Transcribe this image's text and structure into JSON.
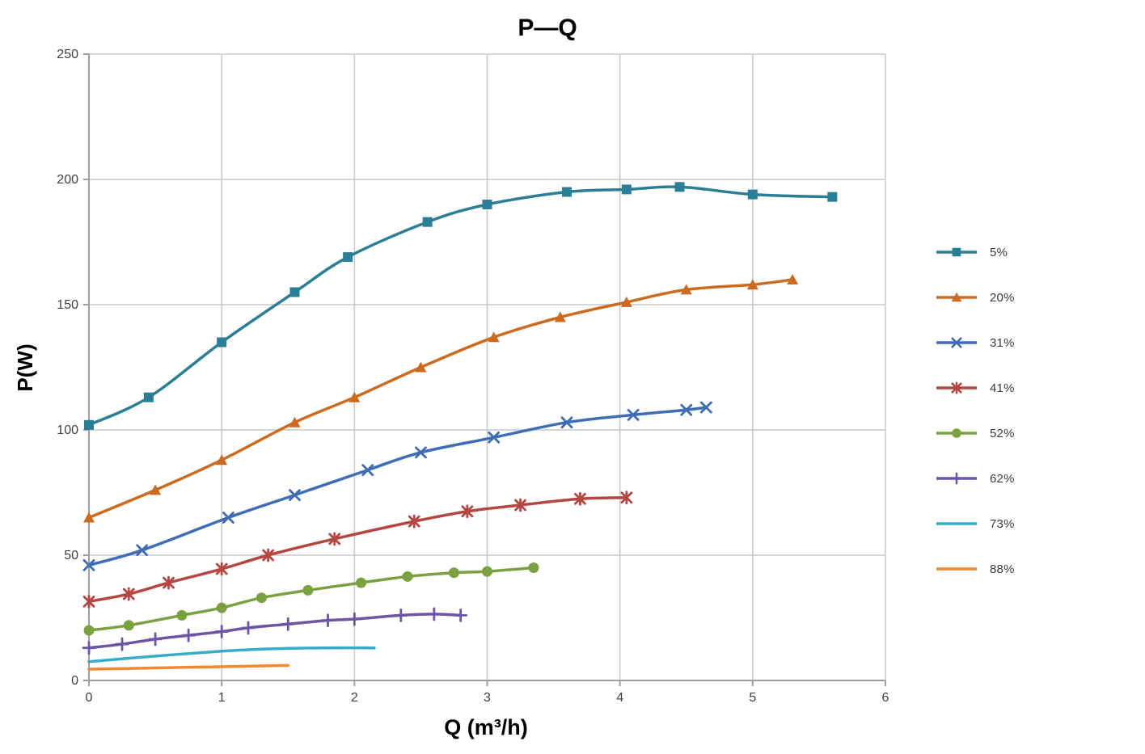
{
  "chart_data": {
    "type": "line",
    "title": "P—Q",
    "xlabel": "Q (m³/h)",
    "ylabel": "P(W)",
    "xlim": [
      0,
      6
    ],
    "ylim": [
      0,
      250
    ],
    "xticks": [
      0,
      1,
      2,
      3,
      4,
      5,
      6
    ],
    "yticks": [
      0,
      50,
      100,
      150,
      200,
      250
    ],
    "grid": true,
    "legend_position": "right",
    "series": [
      {
        "name": "5%",
        "color": "#2A7E96",
        "marker": "square",
        "points": [
          [
            0,
            102
          ],
          [
            0.45,
            113
          ],
          [
            1.0,
            135
          ],
          [
            1.55,
            155
          ],
          [
            1.95,
            169
          ],
          [
            2.55,
            183
          ],
          [
            3.0,
            190
          ],
          [
            3.6,
            195
          ],
          [
            4.05,
            196
          ],
          [
            4.45,
            197
          ],
          [
            5.0,
            194
          ],
          [
            5.6,
            193
          ]
        ]
      },
      {
        "name": "20%",
        "color": "#CC6B20",
        "marker": "triangle",
        "points": [
          [
            0,
            65
          ],
          [
            0.5,
            76
          ],
          [
            1.0,
            88
          ],
          [
            1.55,
            103
          ],
          [
            2.0,
            113
          ],
          [
            2.5,
            125
          ],
          [
            3.05,
            137
          ],
          [
            3.55,
            145
          ],
          [
            4.05,
            151
          ],
          [
            4.5,
            156
          ],
          [
            5.0,
            158
          ],
          [
            5.3,
            160
          ]
        ]
      },
      {
        "name": "31%",
        "color": "#3E6DB5",
        "marker": "x",
        "points": [
          [
            0,
            46
          ],
          [
            0.4,
            52
          ],
          [
            1.05,
            65
          ],
          [
            1.55,
            74
          ],
          [
            2.1,
            84
          ],
          [
            2.5,
            91
          ],
          [
            3.05,
            97
          ],
          [
            3.6,
            103
          ],
          [
            4.1,
            106
          ],
          [
            4.5,
            108
          ],
          [
            4.65,
            109
          ]
        ]
      },
      {
        "name": "41%",
        "color": "#B54742",
        "marker": "asterisk",
        "points": [
          [
            0,
            31.5
          ],
          [
            0.3,
            34.5
          ],
          [
            0.6,
            39
          ],
          [
            1.0,
            44.5
          ],
          [
            1.35,
            50
          ],
          [
            1.85,
            56.5
          ],
          [
            2.45,
            63.5
          ],
          [
            2.85,
            67.5
          ],
          [
            3.25,
            70
          ],
          [
            3.7,
            72.5
          ],
          [
            4.05,
            73
          ]
        ]
      },
      {
        "name": "52%",
        "color": "#79A13F",
        "marker": "circle",
        "points": [
          [
            0,
            20
          ],
          [
            0.3,
            22
          ],
          [
            0.7,
            26
          ],
          [
            1.0,
            29
          ],
          [
            1.3,
            33
          ],
          [
            1.65,
            36
          ],
          [
            2.05,
            39
          ],
          [
            2.4,
            41.5
          ],
          [
            2.75,
            43
          ],
          [
            3.0,
            43.5
          ],
          [
            3.35,
            45
          ]
        ]
      },
      {
        "name": "62%",
        "color": "#6C55A4",
        "marker": "plus",
        "points": [
          [
            0,
            13
          ],
          [
            0.25,
            14.5
          ],
          [
            0.5,
            16.5
          ],
          [
            0.75,
            18
          ],
          [
            1.0,
            19.5
          ],
          [
            1.2,
            21
          ],
          [
            1.5,
            22.5
          ],
          [
            1.8,
            24
          ],
          [
            2.0,
            24.5
          ],
          [
            2.35,
            26
          ],
          [
            2.6,
            26.5
          ],
          [
            2.8,
            26
          ]
        ]
      },
      {
        "name": "73%",
        "color": "#35ADC9",
        "marker": "none",
        "points": [
          [
            0,
            7.5
          ],
          [
            0.45,
            9.5
          ],
          [
            0.95,
            11.5
          ],
          [
            1.3,
            12.5
          ],
          [
            1.75,
            13
          ],
          [
            2.15,
            13
          ]
        ]
      },
      {
        "name": "88%",
        "color": "#EE8A30",
        "marker": "none",
        "points": [
          [
            0,
            4.5
          ],
          [
            0.5,
            5
          ],
          [
            1.0,
            5.5
          ],
          [
            1.5,
            6
          ]
        ]
      }
    ]
  },
  "style": {
    "background": "#ffffff",
    "grid_color": "#c8c8c8",
    "axis_color": "#9e9e9e",
    "tick_label_color": "#3f3f3f",
    "title_color": "#000000"
  }
}
